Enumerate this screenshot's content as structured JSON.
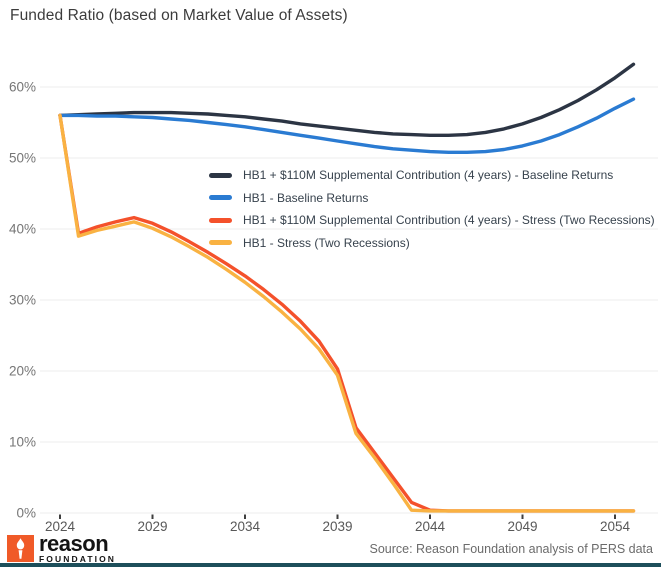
{
  "title": "Funded Ratio (based on Market Value of Assets)",
  "source_note": "Source: Reason Foundation analysis of PERS data",
  "footer": {
    "logo_brand": "reason",
    "logo_subtext": "FOUNDATION",
    "logo_box_color": "#f05a28",
    "bottom_bar_color": "#1d4f5b"
  },
  "chart_data": {
    "type": "line",
    "title": "Funded Ratio (based on Market Value of Assets)",
    "xlabel": "",
    "ylabel": "",
    "xlim": [
      2024,
      2055
    ],
    "ylim": [
      0,
      65
    ],
    "grid": "horizontal",
    "legend_position": "inside-top",
    "x": [
      2024,
      2025,
      2026,
      2027,
      2028,
      2029,
      2030,
      2031,
      2032,
      2033,
      2034,
      2035,
      2036,
      2037,
      2038,
      2039,
      2040,
      2041,
      2042,
      2043,
      2044,
      2045,
      2046,
      2047,
      2048,
      2049,
      2050,
      2051,
      2052,
      2053,
      2054,
      2055
    ],
    "x_tick_values": [
      2024,
      2029,
      2034,
      2039,
      2044,
      2049,
      2054
    ],
    "x_tick_labels": [
      "2024",
      "2029",
      "2034",
      "2039",
      "2044",
      "2049",
      "2054"
    ],
    "y_tick_values": [
      0,
      10,
      20,
      30,
      40,
      50,
      60
    ],
    "y_tick_labels": [
      "0%",
      "10%",
      "20%",
      "30%",
      "40%",
      "50%",
      "60%"
    ],
    "unit": "percent funded ratio",
    "series": [
      {
        "name": "HB1 + $110M Supplemental Contribution (4 years) - Baseline Returns",
        "color": "#2c3544",
        "values": [
          56.0,
          56.1,
          56.2,
          56.3,
          56.4,
          56.4,
          56.4,
          56.3,
          56.2,
          56.0,
          55.8,
          55.5,
          55.2,
          54.8,
          54.5,
          54.2,
          53.9,
          53.6,
          53.4,
          53.3,
          53.2,
          53.2,
          53.3,
          53.6,
          54.1,
          54.8,
          55.7,
          56.8,
          58.1,
          59.6,
          61.3,
          63.2
        ]
      },
      {
        "name": "HB1 - Baseline Returns",
        "color": "#2a7bd2",
        "values": [
          56.0,
          56.0,
          55.9,
          55.9,
          55.8,
          55.7,
          55.5,
          55.3,
          55.0,
          54.7,
          54.4,
          54.0,
          53.6,
          53.2,
          52.8,
          52.4,
          52.0,
          51.6,
          51.3,
          51.1,
          50.9,
          50.8,
          50.8,
          50.9,
          51.2,
          51.7,
          52.4,
          53.3,
          54.4,
          55.6,
          57.0,
          58.3
        ]
      },
      {
        "name": "HB1 + $110M Supplemental Contribution (4 years) - Stress (Two Recessions)",
        "color": "#f4512b",
        "values": [
          56.0,
          39.4,
          40.3,
          41.0,
          41.6,
          40.8,
          39.6,
          38.2,
          36.7,
          35.1,
          33.4,
          31.5,
          29.4,
          27.0,
          24.2,
          20.3,
          12.0,
          8.5,
          5.0,
          1.5,
          0.4,
          0.3,
          0.3,
          0.3,
          0.3,
          0.3,
          0.3,
          0.3,
          0.3,
          0.3,
          0.3,
          0.3
        ]
      },
      {
        "name": "HB1 - Stress (Two Recessions)",
        "color": "#f9b242",
        "values": [
          56.0,
          39.0,
          39.8,
          40.4,
          41.0,
          40.1,
          38.9,
          37.5,
          36.0,
          34.3,
          32.5,
          30.5,
          28.3,
          25.9,
          23.1,
          19.4,
          11.2,
          7.8,
          4.2,
          0.4,
          0.3,
          0.3,
          0.3,
          0.3,
          0.3,
          0.3,
          0.3,
          0.3,
          0.3,
          0.3,
          0.3,
          0.3
        ]
      }
    ]
  }
}
